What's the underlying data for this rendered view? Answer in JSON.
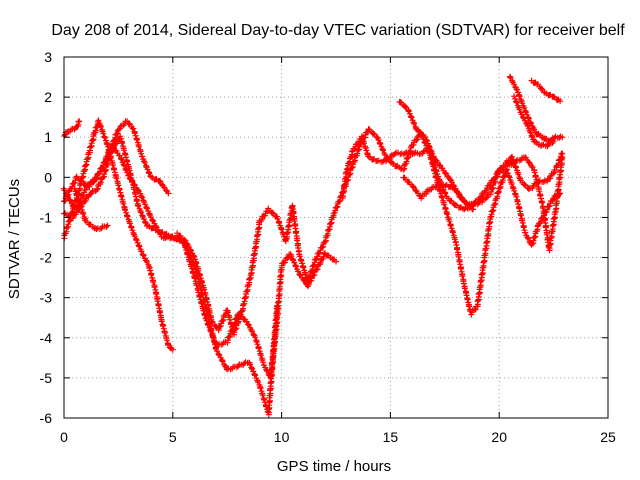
{
  "chart_data": {
    "type": "scatter",
    "title": "Day 208 of 2014, Sidereal Day-to-day VTEC variation (SDTVAR) for receiver belf",
    "xlabel": "GPS time / hours",
    "ylabel": "SDTVAR / TECUs",
    "xlim": [
      0,
      25
    ],
    "ylim": [
      -6,
      3
    ],
    "xticks": [
      "0",
      "5",
      "10",
      "15",
      "20",
      "25"
    ],
    "yticks": [
      "-6",
      "-5",
      "-4",
      "-3",
      "-2",
      "-1",
      "0",
      "1",
      "2",
      "3"
    ],
    "xtick_values": [
      0,
      5,
      10,
      15,
      20,
      25
    ],
    "ytick_values": [
      -6,
      -5,
      -4,
      -3,
      -2,
      -1,
      0,
      1,
      2,
      3
    ],
    "grid": true,
    "marker": "+",
    "color": "#ff0000",
    "series": [
      {
        "points": [
          [
            0,
            -0.6
          ],
          [
            0.3,
            -0.3
          ],
          [
            0.6,
            0.0
          ],
          [
            1.0,
            -0.2
          ],
          [
            1.4,
            -0.1
          ],
          [
            1.8,
            0.3
          ],
          [
            2.2,
            0.8
          ],
          [
            2.6,
            0.5
          ],
          [
            3.0,
            0.0
          ],
          [
            3.5,
            -0.4
          ],
          [
            4.0,
            -1.0
          ],
          [
            4.5,
            -1.5
          ],
          [
            5.0,
            -1.5
          ],
          [
            5.5,
            -1.6
          ],
          [
            6.0,
            -2.5
          ],
          [
            6.5,
            -3.5
          ],
          [
            7.0,
            -4.2
          ],
          [
            7.5,
            -4.1
          ],
          [
            8.0,
            -3.4
          ],
          [
            8.4,
            -3.6
          ],
          [
            8.8,
            -4.0
          ],
          [
            9.2,
            -4.7
          ],
          [
            9.5,
            -5.0
          ],
          [
            9.8,
            -3.5
          ],
          [
            10.0,
            -2.2
          ],
          [
            10.4,
            -1.9
          ],
          [
            10.8,
            -2.4
          ],
          [
            11.2,
            -2.7
          ],
          [
            11.6,
            -2.3
          ],
          [
            12.0,
            -1.9
          ],
          [
            12.5,
            -2.1
          ]
        ]
      },
      {
        "points": [
          [
            0,
            1.05
          ],
          [
            0.2,
            1.15
          ],
          [
            0.4,
            1.2
          ],
          [
            0.6,
            1.25
          ],
          [
            0.7,
            1.4
          ]
        ]
      },
      {
        "points": [
          [
            0,
            -1.5
          ],
          [
            0.3,
            -1.0
          ],
          [
            0.7,
            -0.3
          ],
          [
            1.0,
            0.3
          ],
          [
            1.4,
            1.1
          ],
          [
            1.6,
            1.4
          ],
          [
            2.0,
            0.8
          ],
          [
            2.4,
            0.0
          ],
          [
            2.8,
            -0.8
          ],
          [
            3.2,
            -1.4
          ],
          [
            3.6,
            -1.9
          ],
          [
            3.9,
            -2.2
          ],
          [
            4.2,
            -2.8
          ],
          [
            4.5,
            -3.6
          ],
          [
            4.8,
            -4.2
          ],
          [
            5.0,
            -4.3
          ]
        ]
      },
      {
        "points": [
          [
            0,
            -0.9
          ],
          [
            0.4,
            -1.0
          ],
          [
            0.8,
            -0.7
          ],
          [
            1.2,
            -0.4
          ],
          [
            1.5,
            -0.3
          ],
          [
            1.8,
            0.0
          ],
          [
            2.2,
            0.7
          ],
          [
            2.6,
            1.0
          ],
          [
            3.0,
            0.2
          ],
          [
            3.4,
            -0.7
          ],
          [
            3.8,
            -1.2
          ],
          [
            4.2,
            -1.3
          ],
          [
            4.6,
            -1.4
          ],
          [
            5.0,
            -1.5
          ],
          [
            5.5,
            -1.6
          ],
          [
            6.0,
            -2.2
          ],
          [
            6.5,
            -3.2
          ],
          [
            7.0,
            -4.3
          ],
          [
            7.5,
            -4.8
          ],
          [
            8.0,
            -4.7
          ],
          [
            8.5,
            -4.6
          ],
          [
            9.0,
            -5.2
          ],
          [
            9.4,
            -5.9
          ],
          [
            9.6,
            -4.5
          ],
          [
            9.8,
            -3.2
          ]
        ]
      },
      {
        "points": [
          [
            0,
            -0.3
          ],
          [
            0.5,
            -0.8
          ],
          [
            1.0,
            -0.3
          ],
          [
            1.5,
            0.0
          ],
          [
            2.0,
            0.5
          ],
          [
            2.5,
            1.2
          ],
          [
            2.9,
            1.4
          ],
          [
            3.2,
            1.2
          ],
          [
            3.6,
            0.5
          ],
          [
            4.0,
            0.0
          ],
          [
            4.4,
            -0.1
          ],
          [
            4.8,
            -0.4
          ]
        ]
      },
      {
        "points": [
          [
            0.5,
            -0.3
          ],
          [
            1.0,
            -1.1
          ],
          [
            1.5,
            -1.3
          ],
          [
            2.0,
            -1.2
          ]
        ]
      },
      {
        "points": [
          [
            5.2,
            -1.4
          ],
          [
            5.6,
            -1.6
          ],
          [
            6.0,
            -2.0
          ],
          [
            6.5,
            -2.9
          ],
          [
            6.8,
            -3.6
          ],
          [
            7.1,
            -3.8
          ],
          [
            7.5,
            -3.3
          ],
          [
            7.8,
            -3.9
          ],
          [
            8.2,
            -3.3
          ],
          [
            8.6,
            -2.4
          ],
          [
            9.0,
            -1.1
          ],
          [
            9.4,
            -0.8
          ],
          [
            9.8,
            -1.0
          ],
          [
            10.2,
            -1.6
          ],
          [
            10.5,
            -0.7
          ],
          [
            10.8,
            -1.9
          ],
          [
            11.2,
            -2.6
          ],
          [
            11.6,
            -2.0
          ],
          [
            12.0,
            -1.6
          ],
          [
            12.4,
            -0.9
          ],
          [
            12.8,
            -0.4
          ],
          [
            13.2,
            0.2
          ],
          [
            13.6,
            0.8
          ],
          [
            14.0,
            1.2
          ],
          [
            14.4,
            1.0
          ],
          [
            14.8,
            0.5
          ],
          [
            15.2,
            0.3
          ],
          [
            15.6,
            0.2
          ],
          [
            16.0,
            0.8
          ],
          [
            16.4,
            1.1
          ],
          [
            16.8,
            0.6
          ],
          [
            17.2,
            -0.2
          ],
          [
            17.6,
            -0.9
          ],
          [
            18.0,
            -1.6
          ],
          [
            18.4,
            -2.7
          ],
          [
            18.7,
            -3.4
          ],
          [
            19.0,
            -3.2
          ],
          [
            19.3,
            -2.1
          ],
          [
            19.6,
            -1.0
          ],
          [
            20.0,
            -0.3
          ],
          [
            20.4,
            0.3
          ],
          [
            20.8,
            0.4
          ],
          [
            21.2,
            0.5
          ],
          [
            21.6,
            0.2
          ],
          [
            22.0,
            -0.7
          ],
          [
            22.3,
            -1.8
          ],
          [
            22.6,
            -0.8
          ],
          [
            22.9,
            0.5
          ]
        ]
      },
      {
        "points": [
          [
            12.8,
            -0.5
          ],
          [
            13.0,
            0.2
          ],
          [
            13.3,
            0.7
          ],
          [
            13.7,
            1.0
          ],
          [
            14.0,
            0.5
          ],
          [
            14.4,
            0.4
          ],
          [
            14.8,
            0.4
          ],
          [
            15.2,
            0.6
          ],
          [
            15.6,
            0.6
          ],
          [
            16.0,
            0.6
          ],
          [
            16.4,
            0.6
          ],
          [
            16.8,
            0.7
          ],
          [
            17.2,
            0.0
          ],
          [
            17.6,
            -0.5
          ],
          [
            18.0,
            -0.7
          ],
          [
            18.4,
            -0.8
          ],
          [
            18.8,
            -0.7
          ],
          [
            19.2,
            -0.6
          ],
          [
            19.6,
            -0.4
          ],
          [
            20.0,
            0.2
          ],
          [
            20.4,
            0.1
          ],
          [
            20.8,
            -0.5
          ],
          [
            21.2,
            -1.4
          ],
          [
            21.5,
            -1.7
          ],
          [
            21.8,
            -1.2
          ],
          [
            22.2,
            -0.8
          ],
          [
            22.5,
            -0.5
          ],
          [
            22.8,
            -0.4
          ]
        ]
      },
      {
        "points": [
          [
            15.4,
            1.9
          ],
          [
            15.8,
            1.7
          ],
          [
            16.2,
            1.2
          ],
          [
            16.6,
            1.0
          ],
          [
            17.0,
            0.5
          ],
          [
            17.4,
            0.2
          ],
          [
            17.8,
            -0.1
          ],
          [
            18.2,
            -0.5
          ],
          [
            18.6,
            -0.7
          ],
          [
            19.0,
            -0.6
          ],
          [
            19.4,
            -0.3
          ],
          [
            19.8,
            0.0
          ],
          [
            20.2,
            0.3
          ],
          [
            20.6,
            0.5
          ],
          [
            21.0,
            -0.1
          ],
          [
            21.4,
            -0.3
          ],
          [
            21.8,
            -0.1
          ],
          [
            22.2,
            -0.1
          ],
          [
            22.6,
            0.2
          ],
          [
            22.9,
            0.6
          ]
        ]
      },
      {
        "points": [
          [
            15.6,
            0.0
          ],
          [
            16.0,
            -0.2
          ],
          [
            16.4,
            -0.5
          ],
          [
            16.8,
            -0.3
          ],
          [
            17.2,
            -0.2
          ],
          [
            17.6,
            -0.2
          ],
          [
            18.0,
            -0.3
          ],
          [
            18.4,
            -0.6
          ],
          [
            18.8,
            -0.8
          ]
        ]
      },
      {
        "points": [
          [
            20.5,
            2.5
          ],
          [
            20.8,
            2.2
          ],
          [
            21.1,
            1.8
          ],
          [
            21.4,
            1.4
          ],
          [
            21.7,
            1.1
          ],
          [
            22.0,
            1.0
          ],
          [
            22.3,
            0.9
          ],
          [
            22.6,
            1.0
          ],
          [
            22.9,
            1.0
          ]
        ]
      },
      {
        "points": [
          [
            20.7,
            2.0
          ],
          [
            21.0,
            1.6
          ],
          [
            21.3,
            1.3
          ],
          [
            21.6,
            0.9
          ],
          [
            21.9,
            0.8
          ],
          [
            22.2,
            0.8
          ],
          [
            22.5,
            0.9
          ]
        ]
      },
      {
        "points": [
          [
            21.5,
            2.4
          ],
          [
            21.8,
            2.3
          ],
          [
            22.1,
            2.1
          ],
          [
            22.5,
            2.0
          ],
          [
            22.8,
            1.9
          ]
        ]
      }
    ]
  }
}
